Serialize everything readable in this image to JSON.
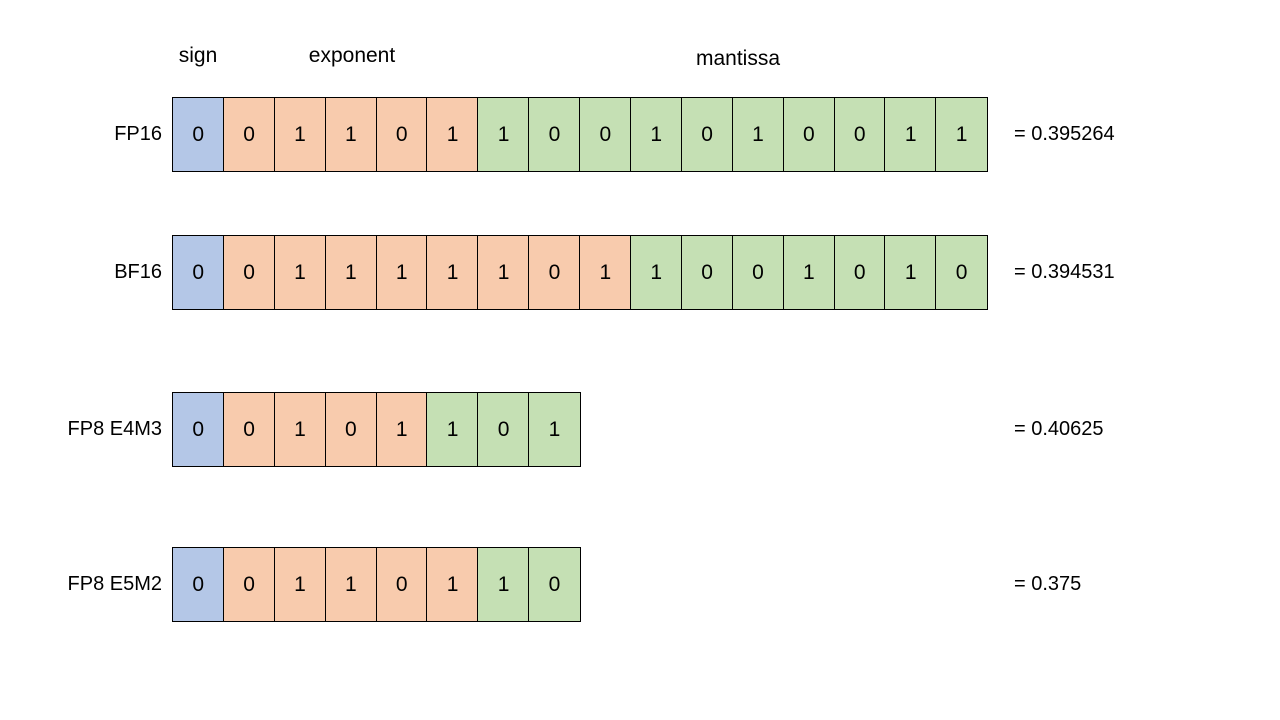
{
  "header": {
    "sign_label": "sign",
    "exponent_label": "exponent",
    "mantissa_label": "mantissa"
  },
  "colors": {
    "sign_cell": "#b4c7e7",
    "exponent_cell": "#f8cbad",
    "mantissa_cell": "#c5e0b4",
    "cell_border": "#000000",
    "text": "#000000",
    "background": "#ffffff"
  },
  "rows": [
    {
      "label": "FP16",
      "sign": [
        "0"
      ],
      "exponent": [
        "0",
        "1",
        "1",
        "0",
        "1"
      ],
      "mantissa": [
        "1",
        "0",
        "0",
        "1",
        "0",
        "1",
        "0",
        "0",
        "1",
        "1"
      ],
      "value": "= 0.395264"
    },
    {
      "label": "BF16",
      "sign": [
        "0"
      ],
      "exponent": [
        "0",
        "1",
        "1",
        "1",
        "1",
        "1",
        "0",
        "1"
      ],
      "mantissa": [
        "1",
        "0",
        "0",
        "1",
        "0",
        "1",
        "0"
      ],
      "value": "= 0.394531"
    },
    {
      "label": "FP8 E4M3",
      "sign": [
        "0"
      ],
      "exponent": [
        "0",
        "1",
        "0",
        "1"
      ],
      "mantissa": [
        "1",
        "0",
        "1"
      ],
      "value": "= 0.40625"
    },
    {
      "label": "FP8 E5M2",
      "sign": [
        "0"
      ],
      "exponent": [
        "0",
        "1",
        "1",
        "0",
        "1"
      ],
      "mantissa": [
        "1",
        "0"
      ],
      "value": "= 0.375"
    }
  ]
}
